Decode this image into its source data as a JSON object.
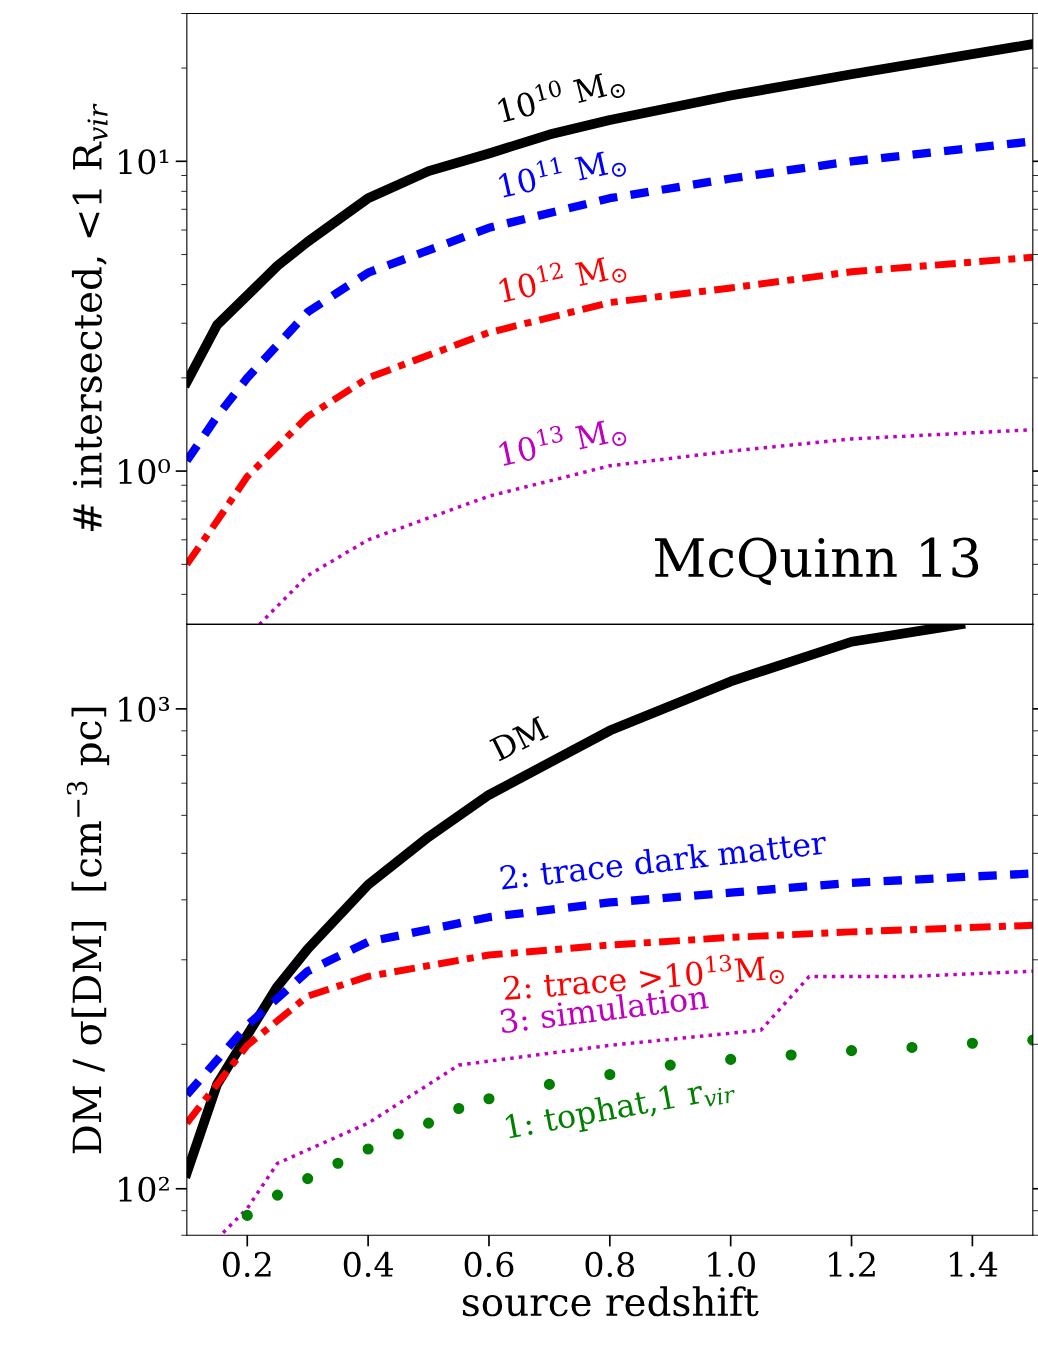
{
  "chart_data": [
    {
      "type": "line",
      "ylabel": "# intersected, <1 R$_{vir}$",
      "log": true,
      "xlim": [
        0.1,
        1.5
      ],
      "xticks": [
        0.2,
        0.4,
        0.6,
        0.8,
        1.0,
        1.2,
        1.4
      ],
      "ylim": [
        0.32,
        30
      ],
      "yticks": [
        {
          "value": 1,
          "label": "10⁰"
        },
        {
          "value": 10,
          "label": "10¹"
        }
      ],
      "tick_labels": "y",
      "grid": false,
      "annotations": [
        "McQuinn 13"
      ],
      "series": [
        {
          "name": "10$^{10}$ M$_{⊙}$",
          "color": "#000000",
          "line_style": "solid",
          "x": [
            0.1,
            0.15,
            0.25,
            0.3,
            0.4,
            0.5,
            0.6,
            0.7,
            0.8,
            1.0,
            1.2,
            1.5
          ],
          "values": [
            1.94,
            2.96,
            4.6,
            5.5,
            7.6,
            9.3,
            10.6,
            12.2,
            13.6,
            16.3,
            19.1,
            23.9
          ]
        },
        {
          "name": "10$^{11}$ M$_{⊙}$",
          "color": "#0000ff",
          "line_style": "dashed",
          "x": [
            0.1,
            0.15,
            0.2,
            0.3,
            0.4,
            0.6,
            0.8,
            1.0,
            1.2,
            1.5
          ],
          "values": [
            1.08,
            1.5,
            2.0,
            3.26,
            4.37,
            6.1,
            7.6,
            8.8,
            10,
            11.6
          ]
        },
        {
          "name": "10$^{12}$ M$_{⊙}$",
          "color": "#ff0000",
          "line_style": "dashdot",
          "x": [
            0.1,
            0.15,
            0.2,
            0.3,
            0.4,
            0.6,
            0.8,
            1.0,
            1.2,
            1.5
          ],
          "values": [
            0.5,
            0.69,
            0.96,
            1.5,
            2.0,
            2.8,
            3.5,
            3.9,
            4.4,
            4.9
          ]
        },
        {
          "name": "10$^{13}$ M$_{⊙}$",
          "color": "#bf00bf",
          "line_style": "dotted",
          "x": [
            0.22,
            0.3,
            0.4,
            0.6,
            0.8,
            1.0,
            1.2,
            1.5
          ],
          "values": [
            0.32,
            0.46,
            0.6,
            0.83,
            1.04,
            1.16,
            1.27,
            1.36
          ]
        }
      ]
    },
    {
      "type": "line",
      "ylabel": "DM / σ[DM]  [cm$^{−3}$ pc]",
      "xlabel": "source redshift",
      "log": true,
      "xlim": [
        0.1,
        1.5
      ],
      "xticks": [
        0.2,
        0.4,
        0.6,
        0.8,
        {
          "value": 1.0,
          "label": "1.0"
        },
        1.2,
        1.4
      ],
      "ylim": [
        80,
        1500
      ],
      "yticks": [
        {
          "value": 100,
          "label": "10²"
        },
        {
          "value": 1000,
          "label": "10³"
        }
      ],
      "grid": false,
      "series": [
        {
          "name": "DM",
          "color": "#000000",
          "line_style": "solid",
          "x": [
            0.1,
            0.15,
            0.2,
            0.25,
            0.3,
            0.4,
            0.5,
            0.6,
            0.8,
            1.0,
            1.2,
            1.38
          ],
          "values": [
            108,
            165,
            209,
            264,
            316,
            430,
            541,
            662,
            901,
            1141,
            1380,
            1500
          ]
        },
        {
          "name": "2: trace dark matter",
          "color": "#0000ff",
          "line_style": "dashed",
          "x": [
            0.1,
            0.2,
            0.3,
            0.4,
            0.6,
            0.8,
            1.0,
            1.2,
            1.5
          ],
          "values": [
            157,
            219,
            284,
            327,
            368,
            395,
            414,
            434,
            454
          ]
        },
        {
          "name": "2: trace >10$^{13}$M$_{⊙}$",
          "color": "#ff0000",
          "line_style": "dashdot",
          "x": [
            0.1,
            0.15,
            0.2,
            0.3,
            0.4,
            0.6,
            0.8,
            1.0,
            1.2,
            1.5
          ],
          "values": [
            137,
            165,
            199,
            252,
            277,
            307,
            322,
            334,
            343,
            354
          ]
        },
        {
          "name": "3: simulation",
          "color": "#bf00bf",
          "line_style": "dotted",
          "x": [
            0.16,
            0.2,
            0.25,
            0.4,
            0.55,
            0.8,
            1.05,
            1.13,
            1.3,
            1.5
          ],
          "values": [
            81,
            91,
            113,
            137,
            181,
            199,
            214,
            277,
            277,
            284
          ]
        },
        {
          "name": "1: tophat,1 r$_{vir}$",
          "type": "scatter",
          "marker": "circle",
          "color": "#007f00",
          "x": [
            0.2,
            0.25,
            0.3,
            0.35,
            0.4,
            0.45,
            0.5,
            0.55,
            0.6,
            0.7,
            0.8,
            0.9,
            1.0,
            1.1,
            1.2,
            1.3,
            1.4,
            1.5
          ],
          "values": [
            88,
            97,
            105,
            113,
            121,
            130,
            137,
            147,
            154,
            165,
            173,
            181,
            186,
            190,
            194,
            197,
            201,
            204
          ]
        }
      ]
    }
  ]
}
